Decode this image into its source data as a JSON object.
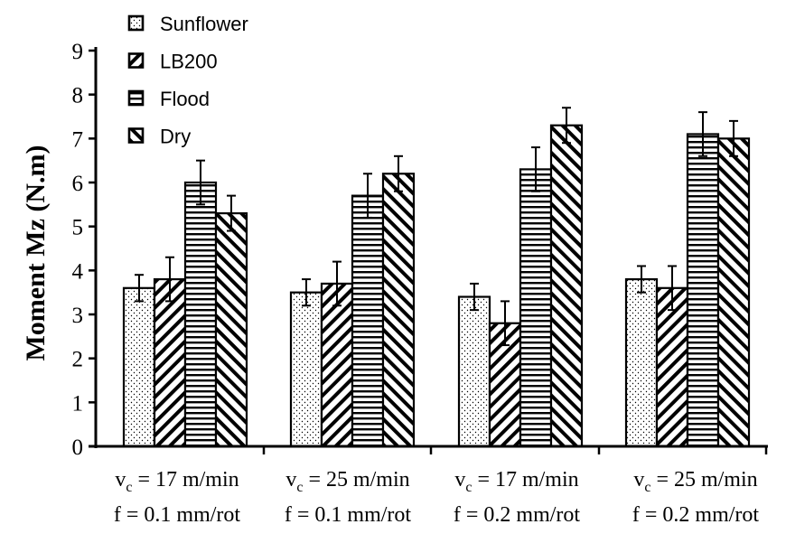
{
  "chart_data": {
    "type": "bar",
    "title": "",
    "xlabel": "",
    "ylabel": "Moment Mz (N.m)",
    "ylim": [
      0,
      9
    ],
    "yticks": [
      0,
      1,
      2,
      3,
      4,
      5,
      6,
      7,
      8,
      9
    ],
    "grid": false,
    "legend_position": "top-left",
    "categories": [
      {
        "line1_main": "v",
        "line1_sub": "c",
        "line1_rest": " = 17 m/min",
        "line2": "f = 0.1 mm/rot"
      },
      {
        "line1_main": "v",
        "line1_sub": "c",
        "line1_rest": " = 25 m/min",
        "line2": "f = 0.1 mm/rot"
      },
      {
        "line1_main": "v",
        "line1_sub": "c",
        "line1_rest": " = 17 m/min",
        "line2": "f = 0.2 mm/rot"
      },
      {
        "line1_main": "v",
        "line1_sub": "c",
        "line1_rest": " = 25 m/min",
        "line2": "f = 0.2 mm/rot"
      }
    ],
    "series": [
      {
        "name": "Sunflower",
        "pattern": "dots",
        "values": [
          3.6,
          3.5,
          3.4,
          3.8
        ],
        "errors": [
          0.3,
          0.3,
          0.3,
          0.3
        ]
      },
      {
        "name": "LB200",
        "pattern": "diag-up",
        "values": [
          3.8,
          3.7,
          2.8,
          3.6
        ],
        "errors": [
          0.5,
          0.5,
          0.5,
          0.5
        ]
      },
      {
        "name": "Flood",
        "pattern": "horizontal",
        "values": [
          6.0,
          5.7,
          6.3,
          7.1
        ],
        "errors": [
          0.5,
          0.5,
          0.5,
          0.5
        ]
      },
      {
        "name": "Dry",
        "pattern": "diag-down",
        "values": [
          5.3,
          6.2,
          7.3,
          7.0
        ],
        "errors": [
          0.4,
          0.4,
          0.4,
          0.4
        ]
      }
    ]
  }
}
